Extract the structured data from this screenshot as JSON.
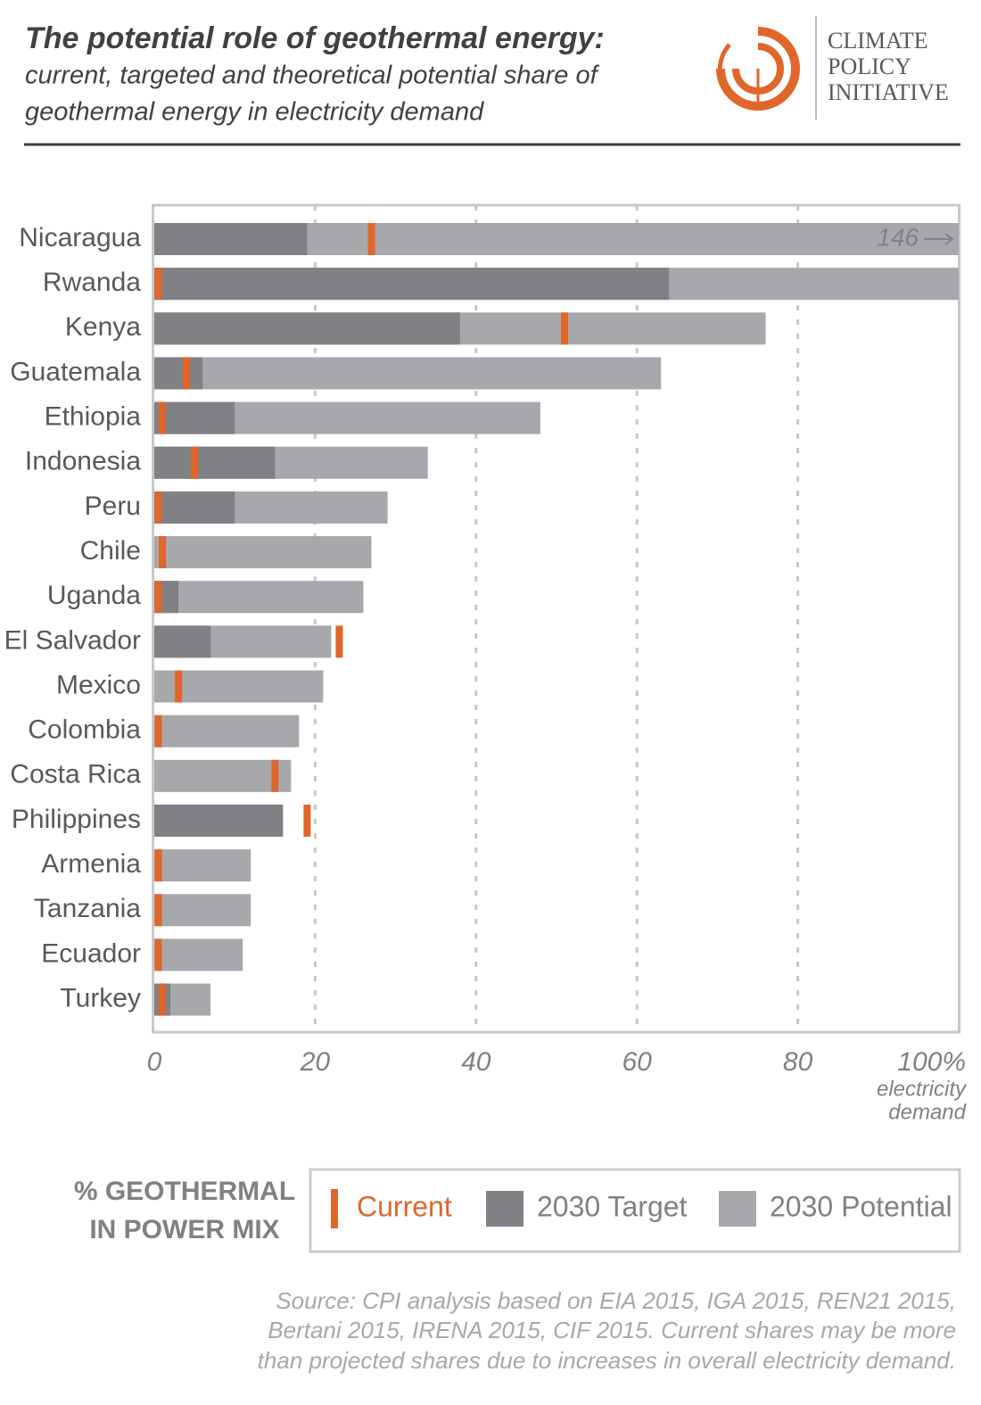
{
  "header": {
    "title": "The potential role of geothermal energy:",
    "subtitle": [
      "current, targeted and theoretical potential share of",
      "geothermal energy in electricity demand"
    ],
    "logo": [
      "CLIMATE",
      "POLICY",
      "INITIATIVE"
    ]
  },
  "chart_data": {
    "type": "bar",
    "orientation": "horizontal",
    "categories": [
      "Nicaragua",
      "Rwanda",
      "Kenya",
      "Guatemala",
      "Ethiopia",
      "Indonesia",
      "Peru",
      "Chile",
      "Uganda",
      "El Salvador",
      "Mexico",
      "Colombia",
      "Costa Rica",
      "Philippines",
      "Armenia",
      "Tanzania",
      "Ecuador",
      "Turkey"
    ],
    "series": [
      {
        "name": "Current",
        "color": "#e0662a",
        "style": "marker",
        "values": [
          27,
          0.5,
          51,
          4,
          1,
          5,
          0.5,
          1,
          0.5,
          23,
          3,
          0.5,
          15,
          19,
          0.5,
          0.5,
          0.5,
          1
        ]
      },
      {
        "name": "2030 Target",
        "color": "#808184",
        "style": "bar",
        "values": [
          19,
          64,
          38,
          6,
          10,
          15,
          10,
          null,
          3,
          7,
          null,
          null,
          null,
          16,
          null,
          null,
          null,
          2
        ]
      },
      {
        "name": "2030 Potential",
        "color": "#a7a8ab",
        "style": "bar",
        "values": [
          146,
          100,
          76,
          63,
          48,
          34,
          29,
          27,
          26,
          22,
          21,
          18,
          17,
          null,
          12,
          12,
          11,
          7
        ],
        "value_labels": [
          "146",
          null,
          null,
          null,
          null,
          null,
          null,
          null,
          null,
          null,
          null,
          null,
          null,
          null,
          null,
          null,
          null,
          null
        ]
      }
    ],
    "xlim": [
      0,
      100
    ],
    "xticks": [
      0,
      20,
      40,
      60,
      80,
      {
        "value": 100,
        "label": "100%"
      }
    ],
    "x_label": [
      "electricity",
      "demand"
    ],
    "grid": true,
    "legend_title": [
      "% GEOTHERMAL",
      "IN POWER MIX"
    ],
    "legend": "bottom"
  },
  "source": [
    "Source: CPI analysis based on EIA 2015, IGA 2015, REN21 2015,",
    "Bertani 2015, IRENA 2015, CIF 2015. Current shares may be more",
    "than projected shares due to increases in overall electricity demand."
  ]
}
